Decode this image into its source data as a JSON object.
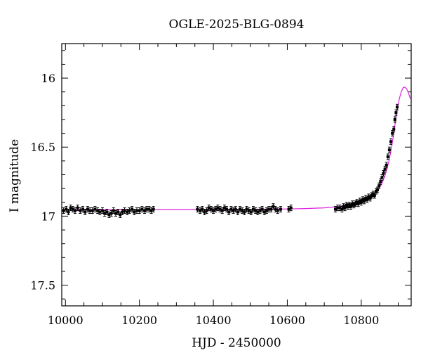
{
  "chart_data": {
    "type": "scatter",
    "title": "OGLE-2025-BLG-0894",
    "xlabel": "HJD - 2450000",
    "ylabel": "I magnitude",
    "xlim": [
      9990,
      10935
    ],
    "ylim": [
      17.65,
      15.75
    ],
    "y_inverted": true,
    "x_ticks": [
      10000,
      10200,
      10400,
      10600,
      10800
    ],
    "y_ticks": [
      16,
      16.5,
      17,
      17.5
    ],
    "x_minor_step": 50,
    "y_minor_step": 0.1,
    "grid": false,
    "colors": {
      "data": "#000000",
      "model": "#e020e0",
      "axes": "#000000"
    },
    "series": [
      {
        "kind": "points",
        "points": [
          [
            9995,
            16.96
          ],
          [
            10002,
            16.95
          ],
          [
            10008,
            16.97
          ],
          [
            10014,
            16.94
          ],
          [
            10020,
            16.95
          ],
          [
            10026,
            16.96
          ],
          [
            10033,
            16.94
          ],
          [
            10040,
            16.96
          ],
          [
            10047,
            16.95
          ],
          [
            10053,
            16.97
          ],
          [
            10060,
            16.95
          ],
          [
            10066,
            16.96
          ],
          [
            10073,
            16.96
          ],
          [
            10080,
            16.95
          ],
          [
            10087,
            16.96
          ],
          [
            10093,
            16.97
          ],
          [
            10100,
            16.96
          ],
          [
            10106,
            16.98
          ],
          [
            10112,
            16.97
          ],
          [
            10118,
            16.99
          ],
          [
            10124,
            16.98
          ],
          [
            10130,
            16.96
          ],
          [
            10136,
            16.98
          ],
          [
            10142,
            16.97
          ],
          [
            10148,
            16.99
          ],
          [
            10154,
            16.97
          ],
          [
            10160,
            16.96
          ],
          [
            10167,
            16.97
          ],
          [
            10173,
            16.96
          ],
          [
            10180,
            16.95
          ],
          [
            10186,
            16.97
          ],
          [
            10193,
            16.96
          ],
          [
            10200,
            16.96
          ],
          [
            10207,
            16.95
          ],
          [
            10214,
            16.96
          ],
          [
            10220,
            16.95
          ],
          [
            10226,
            16.95
          ],
          [
            10232,
            16.96
          ],
          [
            10238,
            16.95
          ],
          [
            10357,
            16.95
          ],
          [
            10364,
            16.96
          ],
          [
            10370,
            16.95
          ],
          [
            10376,
            16.97
          ],
          [
            10382,
            16.96
          ],
          [
            10388,
            16.94
          ],
          [
            10394,
            16.95
          ],
          [
            10400,
            16.96
          ],
          [
            10406,
            16.95
          ],
          [
            10412,
            16.94
          ],
          [
            10418,
            16.95
          ],
          [
            10424,
            16.96
          ],
          [
            10430,
            16.94
          ],
          [
            10436,
            16.95
          ],
          [
            10442,
            16.97
          ],
          [
            10448,
            16.95
          ],
          [
            10454,
            16.96
          ],
          [
            10460,
            16.95
          ],
          [
            10466,
            16.97
          ],
          [
            10472,
            16.95
          ],
          [
            10478,
            16.96
          ],
          [
            10484,
            16.97
          ],
          [
            10490,
            16.95
          ],
          [
            10496,
            16.96
          ],
          [
            10502,
            16.97
          ],
          [
            10508,
            16.95
          ],
          [
            10514,
            16.96
          ],
          [
            10520,
            16.97
          ],
          [
            10526,
            16.96
          ],
          [
            10532,
            16.95
          ],
          [
            10538,
            16.97
          ],
          [
            10544,
            16.96
          ],
          [
            10550,
            16.95
          ],
          [
            10556,
            16.95
          ],
          [
            10562,
            16.93
          ],
          [
            10568,
            16.95
          ],
          [
            10574,
            16.96
          ],
          [
            10582,
            16.95
          ],
          [
            10604,
            16.95
          ],
          [
            10610,
            16.94
          ],
          [
            10730,
            16.95
          ],
          [
            10736,
            16.94
          ],
          [
            10742,
            16.94
          ],
          [
            10748,
            16.95
          ],
          [
            10752,
            16.93
          ],
          [
            10756,
            16.94
          ],
          [
            10760,
            16.92
          ],
          [
            10764,
            16.93
          ],
          [
            10768,
            16.92
          ],
          [
            10772,
            16.93
          ],
          [
            10776,
            16.91
          ],
          [
            10780,
            16.92
          ],
          [
            10784,
            16.91
          ],
          [
            10788,
            16.9
          ],
          [
            10792,
            16.91
          ],
          [
            10796,
            16.89
          ],
          [
            10800,
            16.9
          ],
          [
            10804,
            16.88
          ],
          [
            10808,
            16.89
          ],
          [
            10812,
            16.87
          ],
          [
            10816,
            16.88
          ],
          [
            10820,
            16.86
          ],
          [
            10824,
            16.87
          ],
          [
            10828,
            16.85
          ],
          [
            10832,
            16.84
          ],
          [
            10836,
            16.85
          ],
          [
            10840,
            16.82
          ],
          [
            10844,
            16.81
          ],
          [
            10848,
            16.78
          ],
          [
            10852,
            16.75
          ],
          [
            10856,
            16.72
          ],
          [
            10860,
            16.69
          ],
          [
            10864,
            16.66
          ],
          [
            10868,
            16.63
          ],
          [
            10872,
            16.57
          ],
          [
            10876,
            16.52
          ],
          [
            10880,
            16.46
          ],
          [
            10884,
            16.4
          ],
          [
            10888,
            16.37
          ],
          [
            10891,
            16.3
          ],
          [
            10894,
            16.25
          ],
          [
            10897,
            16.21
          ]
        ]
      },
      {
        "kind": "model",
        "points": [
          [
            9990,
            16.955
          ],
          [
            10300,
            16.952
          ],
          [
            10500,
            16.95
          ],
          [
            10600,
            16.948
          ],
          [
            10650,
            16.945
          ],
          [
            10700,
            16.94
          ],
          [
            10740,
            16.93
          ],
          [
            10770,
            16.915
          ],
          [
            10790,
            16.9
          ],
          [
            10810,
            16.88
          ],
          [
            10830,
            16.85
          ],
          [
            10845,
            16.81
          ],
          [
            10855,
            16.77
          ],
          [
            10865,
            16.7
          ],
          [
            10875,
            16.6
          ],
          [
            10882,
            16.5
          ],
          [
            10888,
            16.4
          ],
          [
            10893,
            16.3
          ],
          [
            10898,
            16.22
          ],
          [
            10903,
            16.15
          ],
          [
            10908,
            16.1
          ],
          [
            10913,
            16.07
          ],
          [
            10918,
            16.065
          ],
          [
            10923,
            16.08
          ],
          [
            10928,
            16.11
          ],
          [
            10933,
            16.15
          ]
        ]
      }
    ]
  }
}
